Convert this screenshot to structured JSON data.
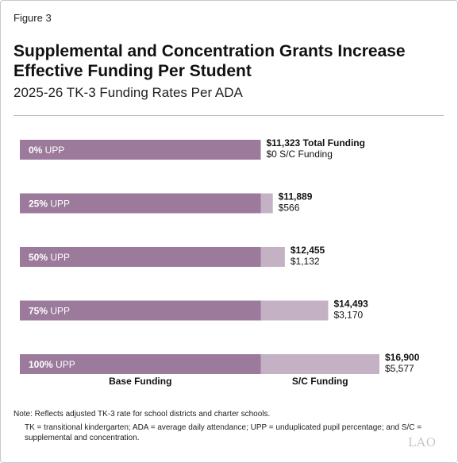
{
  "figure_label": "Figure 3",
  "title": "Supplemental and Concentration Grants Increase Effective Funding Per Student",
  "subtitle": "2025-26 TK-3 Funding Rates Per ADA",
  "colors": {
    "base": "#9b7a9c",
    "sc": "#c4b1c4",
    "text": "#111111"
  },
  "chart_data": {
    "type": "bar",
    "orientation": "horizontal",
    "stacked": true,
    "categories": [
      "0% UPP",
      "25% UPP",
      "50% UPP",
      "75% UPP",
      "100% UPP"
    ],
    "category_parts": [
      {
        "bold": "0%",
        "rest": " UPP"
      },
      {
        "bold": "25%",
        "rest": " UPP"
      },
      {
        "bold": "50%",
        "rest": " UPP"
      },
      {
        "bold": "75%",
        "rest": " UPP"
      },
      {
        "bold": "100%",
        "rest": " UPP"
      }
    ],
    "series": [
      {
        "name": "Base Funding",
        "values": [
          11323,
          11323,
          11323,
          11323,
          11323
        ]
      },
      {
        "name": "S/C Funding",
        "values": [
          0,
          566,
          1132,
          3170,
          5577
        ]
      }
    ],
    "bar_labels": [
      {
        "total": "$11,323 Total Funding",
        "sc": "$0 S/C Funding"
      },
      {
        "total": "$11,889",
        "sc": "$566"
      },
      {
        "total": "$12,455",
        "sc": "$1,132"
      },
      {
        "total": "$14,493",
        "sc": "$3,170"
      },
      {
        "total": "$16,900",
        "sc": "$5,577"
      }
    ],
    "xlim": [
      0,
      16900
    ],
    "grid": false,
    "legend_position": "bottom"
  },
  "notes": {
    "line1": "Note: Reflects adjusted TK-3 rate for school districts and charter schools.",
    "line2": "TK = transitional kindergarten; ADA = average daily attendance; UPP = unduplicated pupil percentage; and S/C = supplemental and concentration."
  },
  "logo_text": "LAO"
}
